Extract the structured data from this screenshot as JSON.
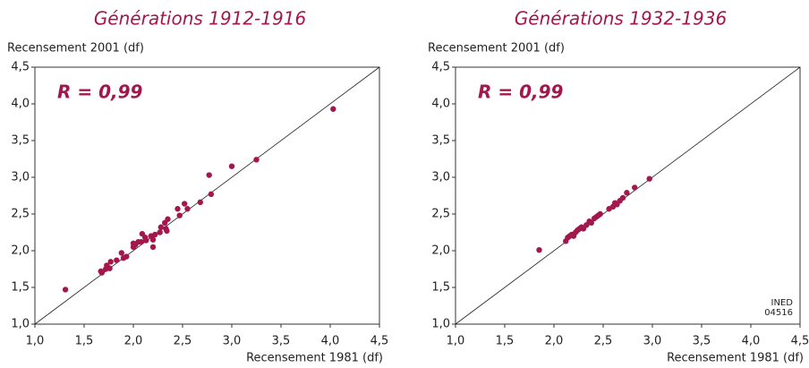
{
  "chart_data": [
    {
      "type": "scatter",
      "title": "Générations 1912-1916",
      "ylabel": "Recensement 2001 (df)",
      "xlabel": "Recensement 1981 (df)",
      "annotation": "R = 0,99",
      "color": "#a3174d",
      "xlim": [
        1,
        4.5
      ],
      "ylim": [
        1,
        4.5
      ],
      "xticks": [
        {
          "value": 1,
          "label": "1,0"
        },
        {
          "value": 1.5,
          "label": "1,5"
        },
        {
          "value": 2,
          "label": "2,0"
        },
        {
          "value": 2.5,
          "label": "2,5"
        },
        {
          "value": 3,
          "label": "3,0"
        },
        {
          "value": 3.5,
          "label": "3,5"
        },
        {
          "value": 4,
          "label": "4,0"
        },
        {
          "value": 4.5,
          "label": "4,5"
        }
      ],
      "yticks": [
        {
          "value": 1,
          "label": "1,0"
        },
        {
          "value": 1.5,
          "label": "1,5"
        },
        {
          "value": 2,
          "label": "2,0"
        },
        {
          "value": 2.5,
          "label": "2,5"
        },
        {
          "value": 3,
          "label": "3,0"
        },
        {
          "value": 3.5,
          "label": "3,5"
        },
        {
          "value": 4,
          "label": "4,0"
        },
        {
          "value": 4.5,
          "label": "4,5"
        }
      ],
      "x": [
        1.31,
        1.67,
        1.68,
        1.72,
        1.73,
        1.76,
        1.77,
        1.83,
        1.88,
        1.9,
        1.93,
        2.0,
        2.0,
        2.02,
        2.05,
        2.08,
        2.09,
        2.12,
        2.13,
        2.18,
        2.2,
        2.2,
        2.22,
        2.27,
        2.28,
        2.32,
        2.33,
        2.34,
        2.35,
        2.45,
        2.47,
        2.52,
        2.55,
        2.68,
        2.77,
        2.79,
        3.0,
        3.25,
        4.03
      ],
      "values": [
        1.47,
        1.72,
        1.7,
        1.75,
        1.8,
        1.76,
        1.85,
        1.87,
        1.97,
        1.9,
        1.92,
        2.05,
        2.1,
        2.08,
        2.12,
        2.12,
        2.23,
        2.18,
        2.14,
        2.2,
        2.05,
        2.15,
        2.22,
        2.25,
        2.32,
        2.38,
        2.3,
        2.27,
        2.43,
        2.57,
        2.48,
        2.64,
        2.57,
        2.66,
        3.03,
        2.77,
        3.15,
        3.24,
        3.93
      ]
    },
    {
      "type": "scatter",
      "title": "Générations 1932-1936",
      "ylabel": "Recensement 2001 (df)",
      "xlabel": "Recensement 1981 (df)",
      "annotation": "R = 0,99",
      "color": "#a3174d",
      "xlim": [
        1,
        4.5
      ],
      "ylim": [
        1,
        4.5
      ],
      "xticks": [
        {
          "value": 1,
          "label": "1,0"
        },
        {
          "value": 1.5,
          "label": "1,5"
        },
        {
          "value": 2,
          "label": "2,0"
        },
        {
          "value": 2.5,
          "label": "2,5"
        },
        {
          "value": 3,
          "label": "3,0"
        },
        {
          "value": 3.5,
          "label": "3,5"
        },
        {
          "value": 4,
          "label": "4,0"
        },
        {
          "value": 4.5,
          "label": "4,5"
        }
      ],
      "yticks": [
        {
          "value": 1,
          "label": "1,0"
        },
        {
          "value": 1.5,
          "label": "1,5"
        },
        {
          "value": 2,
          "label": "2,0"
        },
        {
          "value": 2.5,
          "label": "2,5"
        },
        {
          "value": 3,
          "label": "3,0"
        },
        {
          "value": 3.5,
          "label": "3,5"
        },
        {
          "value": 4,
          "label": "4,0"
        },
        {
          "value": 4.5,
          "label": "4,5"
        }
      ],
      "x": [
        1.85,
        2.12,
        2.14,
        2.16,
        2.18,
        2.2,
        2.22,
        2.24,
        2.26,
        2.28,
        2.3,
        2.33,
        2.36,
        2.38,
        2.41,
        2.43,
        2.45,
        2.47,
        2.56,
        2.6,
        2.62,
        2.64,
        2.67,
        2.7,
        2.74,
        2.82,
        2.97
      ],
      "values": [
        2.01,
        2.13,
        2.18,
        2.2,
        2.22,
        2.2,
        2.25,
        2.28,
        2.3,
        2.32,
        2.3,
        2.35,
        2.4,
        2.38,
        2.44,
        2.46,
        2.48,
        2.5,
        2.57,
        2.6,
        2.65,
        2.63,
        2.68,
        2.72,
        2.79,
        2.86,
        2.98
      ],
      "note": [
        "INED",
        "04516"
      ]
    }
  ]
}
